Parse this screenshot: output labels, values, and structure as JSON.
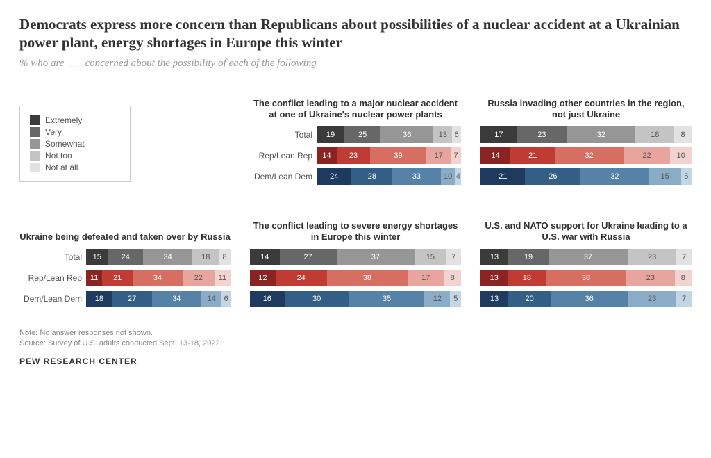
{
  "title": "Democrats express more concern than Republicans about possibilities of a nuclear accident at a Ukrainian power plant, energy shortages in Europe this winter",
  "subtitle": "% who are ___ concerned about the possibility of each of the following",
  "legend": {
    "items": [
      {
        "label": "Extremely",
        "color": "#3b3b3b"
      },
      {
        "label": "Very",
        "color": "#676767"
      },
      {
        "label": "Somewhat",
        "color": "#969696"
      },
      {
        "label": "Not too",
        "color": "#c4c4c4"
      },
      {
        "label": "Not at all",
        "color": "#e2e2e2"
      }
    ]
  },
  "palettes": {
    "total": [
      "#3b3b3b",
      "#676767",
      "#969696",
      "#c4c4c4",
      "#e2e2e2"
    ],
    "rep": [
      "#8a2423",
      "#bf3b34",
      "#d66e62",
      "#e8a59d",
      "#f3d3cf"
    ],
    "dem": [
      "#1f3a5f",
      "#335f87",
      "#5682a8",
      "#8aacc6",
      "#c3d6e3"
    ]
  },
  "row_labels": [
    "Total",
    "Rep/Lean Rep",
    "Dem/Lean Dem"
  ],
  "light_text_from_index": 3,
  "panels": [
    {
      "title": "The conflict leading to a major nuclear accident at one of Ukraine's nuclear power plants",
      "rows": [
        [
          19,
          25,
          36,
          13,
          6
        ],
        [
          14,
          23,
          39,
          17,
          7
        ],
        [
          24,
          28,
          33,
          10,
          4
        ]
      ]
    },
    {
      "title": "Russia invading other countries in the region, not just Ukraine",
      "rows": [
        [
          17,
          23,
          32,
          18,
          8
        ],
        [
          14,
          21,
          32,
          22,
          10
        ],
        [
          21,
          26,
          32,
          15,
          5
        ]
      ]
    },
    {
      "title": "Ukraine being defeated and taken over by Russia",
      "rows": [
        [
          15,
          24,
          34,
          18,
          8
        ],
        [
          11,
          21,
          34,
          22,
          11
        ],
        [
          18,
          27,
          34,
          14,
          6
        ]
      ]
    },
    {
      "title": "The conflict leading to severe energy shortages in Europe this winter",
      "rows": [
        [
          14,
          27,
          37,
          15,
          7
        ],
        [
          12,
          24,
          38,
          17,
          8
        ],
        [
          16,
          30,
          35,
          12,
          5
        ]
      ]
    },
    {
      "title": "U.S. and NATO support for Ukraine leading to a U.S. war with Russia",
      "rows": [
        [
          13,
          19,
          37,
          23,
          7
        ],
        [
          13,
          18,
          38,
          23,
          8
        ],
        [
          13,
          20,
          36,
          23,
          7
        ]
      ]
    }
  ],
  "note": "Note: No answer responses not shown.",
  "source": "Source: Survey of U.S. adults conducted Sept. 13-18, 2022.",
  "org": "PEW RESEARCH CENTER"
}
